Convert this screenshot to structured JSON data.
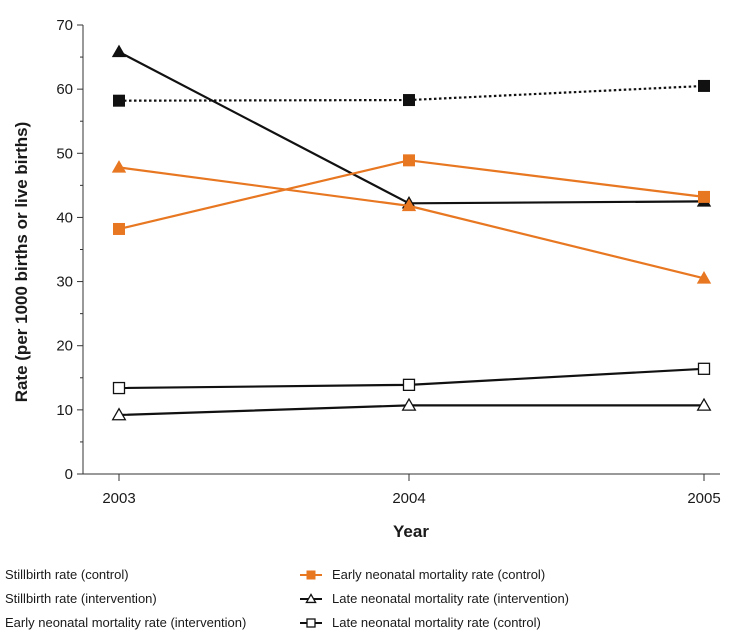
{
  "chart_data": {
    "type": "line",
    "title": "",
    "xlabel": "Year",
    "ylabel": "Rate (per 1000 births or live births)",
    "x": [
      "2003",
      "2004",
      "2005"
    ],
    "y_ticks": [
      "0",
      "10",
      "20",
      "30",
      "40",
      "50",
      "60",
      "70"
    ],
    "ylim": [
      0,
      70
    ],
    "grid": false,
    "legend_position": "bottom",
    "series": [
      {
        "name": "Stillbirth rate (control)",
        "values": [
          58.2,
          58.3,
          60.5
        ],
        "color": "#111111",
        "line_style": "dotted",
        "marker": "filled-square"
      },
      {
        "name": "Stillbirth rate (intervention)",
        "values": [
          65.8,
          42.2,
          42.5
        ],
        "color": "#111111",
        "line_style": "solid",
        "marker": "filled-triangle"
      },
      {
        "name": "Early neonatal mortality rate (intervention)",
        "values": [
          47.8,
          41.8,
          30.5
        ],
        "color": "#e87722",
        "line_style": "solid",
        "marker": "filled-triangle"
      },
      {
        "name": "Early neonatal mortality rate (control)",
        "values": [
          38.2,
          48.9,
          43.2
        ],
        "color": "#e87722",
        "line_style": "solid",
        "marker": "filled-square"
      },
      {
        "name": "Late neonatal mortality rate (intervention)",
        "values": [
          9.2,
          10.7,
          10.7
        ],
        "color": "#111111",
        "line_style": "solid",
        "marker": "open-triangle"
      },
      {
        "name": "Late neonatal mortality rate (control)",
        "values": [
          13.4,
          13.9,
          16.4
        ],
        "color": "#111111",
        "line_style": "solid",
        "marker": "open-square"
      }
    ]
  }
}
